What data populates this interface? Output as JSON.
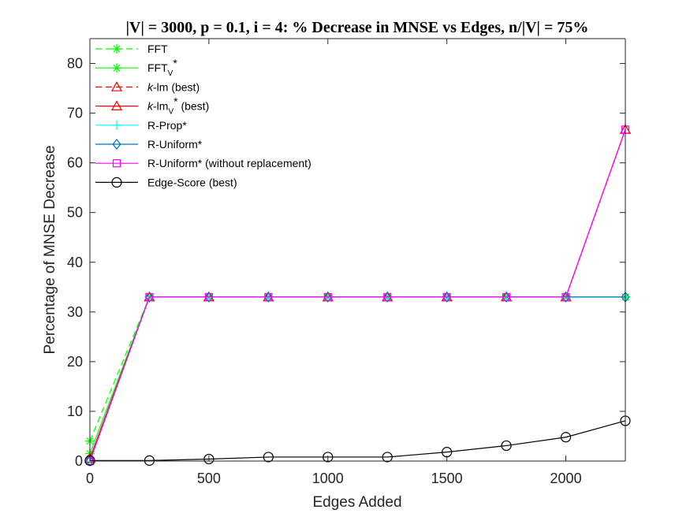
{
  "chart_data": {
    "type": "line",
    "title": "|V| = 3000, p = 0.1, i = 4: % Decrease in MNSE vs Edges, n/|V| = 75%",
    "xlabel": "Edges Added",
    "ylabel": "Percentage of MNSE Decrease",
    "xlim": [
      0,
      2250
    ],
    "ylim": [
      0,
      85
    ],
    "xticks": [
      0,
      500,
      1000,
      1500,
      2000
    ],
    "yticks": [
      0,
      10,
      20,
      30,
      40,
      50,
      60,
      70,
      80
    ],
    "grid": false,
    "legend_position": "top-left",
    "x": [
      0,
      250,
      500,
      750,
      1000,
      1250,
      1500,
      1750,
      2000,
      2250
    ],
    "series": [
      {
        "name": "FFT",
        "color": "#00ff00",
        "dash": "dashed",
        "marker": "star",
        "values": [
          4,
          33,
          33,
          33,
          33,
          33,
          33,
          33,
          33,
          33
        ]
      },
      {
        "name": "FFT_V*",
        "legend_main": "FFT",
        "legend_sub": "V",
        "legend_tail": "*",
        "color": "#00ff00",
        "dash": "solid",
        "marker": "star",
        "values": [
          1.5,
          33,
          33,
          33,
          33,
          33,
          33,
          33,
          33,
          33
        ]
      },
      {
        "name": "k-lm (best)",
        "legend_main": "k",
        "legend_tail": "-lm (best)",
        "italic_prefix": true,
        "color": "#ff0000",
        "dash": "dashed",
        "marker": "triangle",
        "values": [
          0.5,
          33,
          33,
          33,
          33,
          33,
          33,
          33,
          33,
          66.7
        ]
      },
      {
        "name": "k-lm_V* (best)",
        "legend_main": "k",
        "legend_mid": "-lm",
        "legend_sub": "V",
        "legend_tail": "* (best)",
        "italic_prefix": true,
        "color": "#ff0000",
        "dash": "solid",
        "marker": "triangle",
        "values": [
          0.5,
          33,
          33,
          33,
          33,
          33,
          33,
          33,
          33,
          66.7
        ]
      },
      {
        "name": "R-Prop*",
        "color": "#00ffff",
        "dash": "solid",
        "marker": "plus",
        "values": [
          0,
          33,
          33,
          33,
          33,
          33,
          33,
          33,
          33,
          33
        ]
      },
      {
        "name": "R-Uniform*",
        "color": "#0072bd",
        "dash": "solid",
        "marker": "diamond",
        "values": [
          0,
          33,
          33,
          33,
          33,
          33,
          33,
          33,
          33,
          33
        ]
      },
      {
        "name": "R-Uniform* (without replacement)",
        "color": "#ff00ff",
        "dash": "solid",
        "marker": "square",
        "values": [
          0,
          33,
          33,
          33,
          33,
          33,
          33,
          33,
          33,
          66.7
        ]
      },
      {
        "name": "Edge-Score (best)",
        "color": "#000000",
        "dash": "solid",
        "marker": "circle",
        "values": [
          0.1,
          0.1,
          0.4,
          0.8,
          0.8,
          0.8,
          1.8,
          3.1,
          4.8,
          8.1
        ]
      }
    ]
  }
}
